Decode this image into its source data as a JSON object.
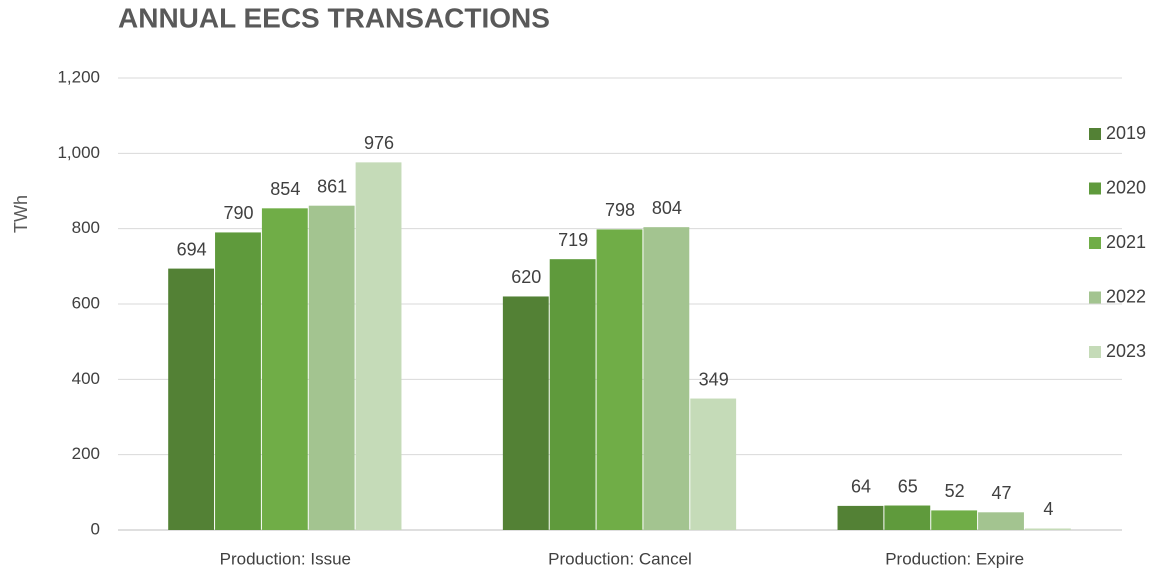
{
  "chart_data": {
    "type": "bar",
    "title": "ANNUAL EECS TRANSACTIONS",
    "y_label": "TWh",
    "categories": [
      "Production: Issue",
      "Production: Cancel",
      "Production: Expire"
    ],
    "series": [
      {
        "name": "2019",
        "color": "#538135",
        "values": [
          694,
          620,
          64
        ]
      },
      {
        "name": "2020",
        "color": "#5f9a3c",
        "values": [
          790,
          719,
          65
        ]
      },
      {
        "name": "2021",
        "color": "#70ad47",
        "values": [
          854,
          798,
          52
        ]
      },
      {
        "name": "2022",
        "color": "#a3c490",
        "values": [
          861,
          804,
          47
        ]
      },
      {
        "name": "2023",
        "color": "#c5dbb8",
        "values": [
          976,
          349,
          4
        ]
      }
    ],
    "ylim": [
      0,
      1200
    ],
    "yticks": [
      0,
      200,
      400,
      600,
      800,
      {
        "value": 1000,
        "label": "1,000"
      },
      {
        "value": 1200,
        "label": "1,200"
      }
    ],
    "grid": true,
    "legend": "right"
  }
}
